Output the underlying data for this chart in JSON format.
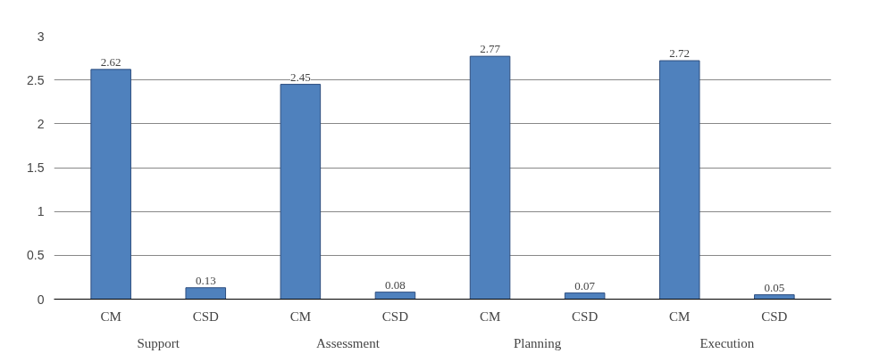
{
  "chart_data": {
    "type": "bar",
    "categories": [
      "CM",
      "CSD",
      "CM",
      "CSD",
      "CM",
      "CSD",
      "CM",
      "CSD"
    ],
    "values": [
      2.62,
      0.13,
      2.45,
      0.08,
      2.77,
      0.07,
      2.72,
      0.05
    ],
    "color": "#4f81bd",
    "ylim": [
      0,
      3
    ],
    "yticks": [
      0,
      0.5,
      1,
      1.5,
      2,
      2.5,
      3
    ],
    "grid": "y",
    "data_labels": true,
    "annotations": [
      "Support",
      "Assessment",
      "Planning",
      "Execution"
    ]
  }
}
